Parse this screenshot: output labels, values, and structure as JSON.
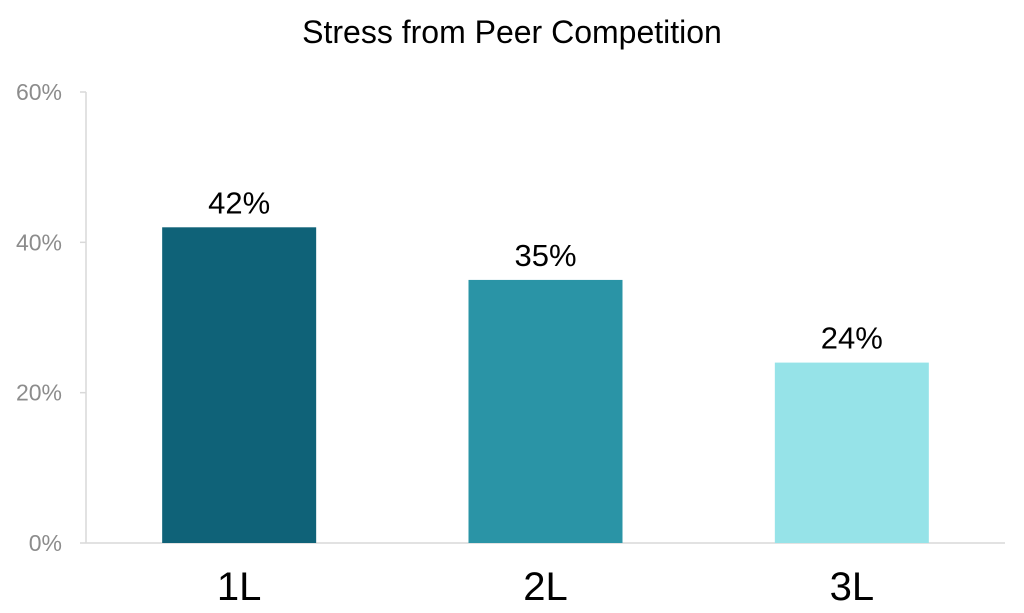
{
  "chart_data": {
    "type": "bar",
    "title": "Stress from Peer Competition",
    "categories": [
      "1L",
      "2L",
      "3L"
    ],
    "values": [
      42,
      35,
      24
    ],
    "data_labels": [
      "42%",
      "35%",
      "24%"
    ],
    "bar_colors": [
      "#0f6278",
      "#2a94a6",
      "#96e3e8"
    ],
    "ylim": [
      0,
      60
    ],
    "yticks": [
      0,
      20,
      40,
      60
    ],
    "ytick_labels": [
      "0%",
      "20%",
      "40%",
      "60%"
    ],
    "xlabel": "",
    "ylabel": "",
    "grid": false,
    "legend": "none",
    "axis_color": "#d9d9d9"
  }
}
